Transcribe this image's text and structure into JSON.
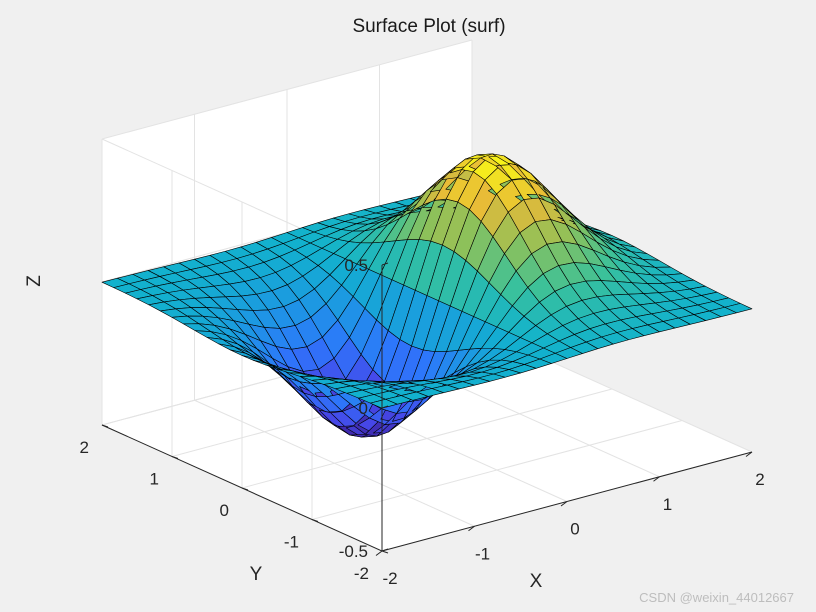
{
  "chart_data": {
    "type": "surface",
    "title": "Surface Plot (surf)",
    "xlabel": "X",
    "ylabel": "Y",
    "zlabel": "Z",
    "function": "z = x * exp(-x^2 - y^2)",
    "xlim": [
      -2,
      2
    ],
    "ylim": [
      -2,
      2
    ],
    "zlim": [
      -0.5,
      0.5
    ],
    "x_ticks": [
      -2,
      -1,
      0,
      1,
      2
    ],
    "y_ticks": [
      -2,
      -1,
      0,
      1,
      2
    ],
    "z_ticks": [
      -0.5,
      0,
      0.5
    ],
    "x_tick_labels": [
      "-2",
      "-1",
      "0",
      "1",
      "2"
    ],
    "y_tick_labels": [
      "-2",
      "-1",
      "0",
      "1",
      "2"
    ],
    "z_tick_labels": [
      "-0.5",
      "0",
      "0.5"
    ],
    "grid_points": 25,
    "grid": true,
    "colormap": "parula",
    "edge_color": "#000000",
    "background_color": "#f0f0f0",
    "pane_color": "#ffffff"
  },
  "watermark": "CSDN @weixin_44012667"
}
